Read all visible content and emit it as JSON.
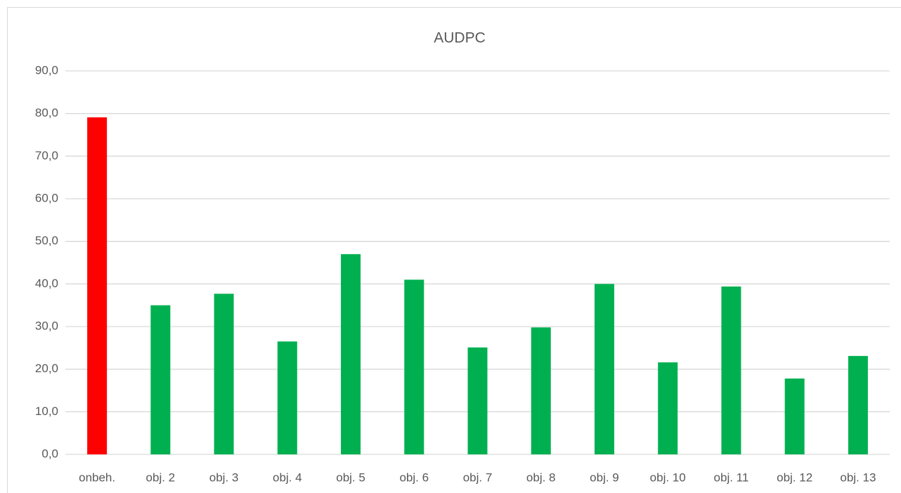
{
  "chart_data": {
    "type": "bar",
    "title": "AUDPC",
    "categories": [
      "onbeh.",
      "obj. 2",
      "obj. 3",
      "obj. 4",
      "obj. 5",
      "obj. 6",
      "obj. 7",
      "obj. 8",
      "obj. 9",
      "obj. 10",
      "obj. 11",
      "obj. 12",
      "obj. 13"
    ],
    "values": [
      79.1,
      35.0,
      37.7,
      26.5,
      47.0,
      41.0,
      25.1,
      29.8,
      40.0,
      21.6,
      39.4,
      17.8,
      23.1
    ],
    "colors": [
      "#ff0000",
      "#00b050",
      "#00b050",
      "#00b050",
      "#00b050",
      "#00b050",
      "#00b050",
      "#00b050",
      "#00b050",
      "#00b050",
      "#00b050",
      "#00b050",
      "#00b050"
    ],
    "ylim": [
      0,
      90
    ],
    "yticks": [
      {
        "value": 0,
        "label": "0,0"
      },
      {
        "value": 10,
        "label": "10,0"
      },
      {
        "value": 20,
        "label": "20,0"
      },
      {
        "value": 30,
        "label": "30,0"
      },
      {
        "value": 40,
        "label": "40,0"
      },
      {
        "value": 50,
        "label": "50,0"
      },
      {
        "value": 60,
        "label": "60,0"
      },
      {
        "value": 70,
        "label": "70,0"
      },
      {
        "value": 80,
        "label": "80,0"
      },
      {
        "value": 90,
        "label": "90,0"
      }
    ],
    "grid": true
  }
}
